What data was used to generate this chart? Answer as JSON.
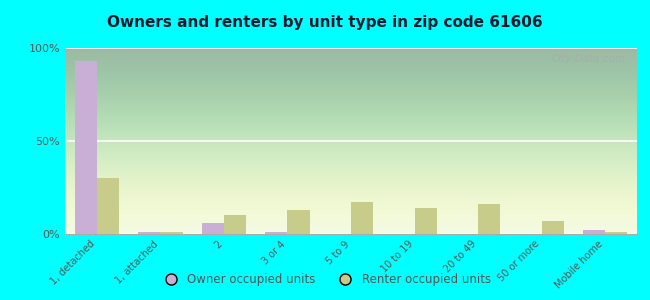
{
  "title": "Owners and renters by unit type in zip code 61606",
  "categories": [
    "1, detached",
    "1, attached",
    "2",
    "3 or 4",
    "5 to 9",
    "10 to 19",
    "20 to 49",
    "50 or more",
    "Mobile home"
  ],
  "owner_values": [
    93,
    1,
    6,
    1,
    0,
    0,
    0,
    0,
    2
  ],
  "renter_values": [
    30,
    1,
    10,
    13,
    17,
    14,
    16,
    7,
    1
  ],
  "owner_color": "#c9aed6",
  "renter_color": "#c8cc8a",
  "background_top": "#e8f5d8",
  "background_bottom": "#f0f8e0",
  "outer_background": "#00ffff",
  "ylim": [
    0,
    100
  ],
  "yticks": [
    0,
    50,
    100
  ],
  "ytick_labels": [
    "0%",
    "50%",
    "100%"
  ],
  "bar_width": 0.35,
  "legend_owner_label": "Owner occupied units",
  "legend_renter_label": "Renter occupied units",
  "watermark": "City-Data.com",
  "title_color": "#1a1a2e",
  "tick_color": "#555555"
}
